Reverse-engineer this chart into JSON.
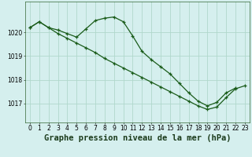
{
  "title": "Graphe pression niveau de la mer (hPa)",
  "background_color": "#d5efee",
  "grid_color": "#b0d8cc",
  "line_color": "#1a5c1a",
  "x_ticks": [
    0,
    1,
    2,
    3,
    4,
    5,
    6,
    7,
    8,
    9,
    10,
    11,
    12,
    13,
    14,
    15,
    16,
    17,
    18,
    19,
    20,
    21,
    22,
    23
  ],
  "y_ticks": [
    1017,
    1018,
    1019,
    1020
  ],
  "ylim": [
    1016.2,
    1021.3
  ],
  "xlim": [
    -0.5,
    23.5
  ],
  "series1_y": [
    1020.2,
    1020.45,
    1020.2,
    1020.1,
    1019.95,
    1019.8,
    1020.15,
    1020.5,
    1020.6,
    1020.65,
    1020.45,
    1019.85,
    1019.2,
    1018.85,
    1018.55,
    1018.25,
    1017.85,
    1017.45,
    1017.1,
    1016.9,
    1017.05,
    1017.45,
    1017.65,
    null
  ],
  "series2_y": [
    1020.2,
    1020.45,
    1020.2,
    1019.95,
    1019.75,
    1019.55,
    1019.35,
    1019.15,
    1018.9,
    1018.7,
    1018.5,
    1018.3,
    1018.1,
    1017.9,
    1017.7,
    1017.5,
    1017.3,
    1017.1,
    1016.9,
    1016.75,
    1016.85,
    1017.25,
    1017.62,
    1017.75
  ],
  "title_fontsize": 7.5,
  "tick_fontsize": 5.5
}
